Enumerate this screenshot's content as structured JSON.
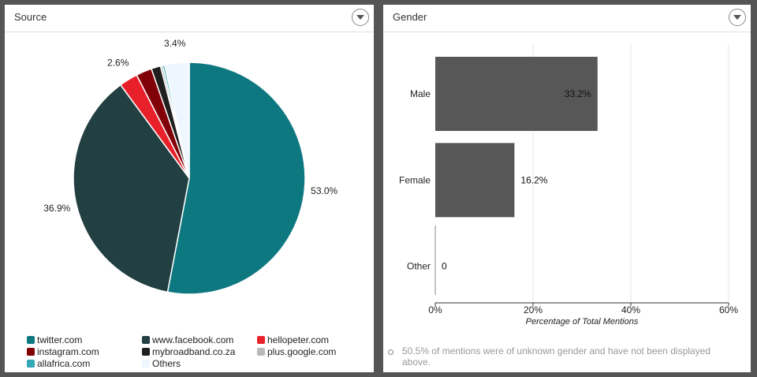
{
  "source_panel": {
    "title": "Source",
    "dropdown_icon": "chevron-down-icon",
    "legend": [
      {
        "label": "twitter.com",
        "color": "#0e7880"
      },
      {
        "label": "www.facebook.com",
        "color": "#223f42"
      },
      {
        "label": "hellopeter.com",
        "color": "#e8202a"
      },
      {
        "label": "instagram.com",
        "color": "#820007"
      },
      {
        "label": "mybroadband.co.za",
        "color": "#1f1f1f"
      },
      {
        "label": "plus.google.com",
        "color": "#b9b9b9"
      },
      {
        "label": "allafrica.com",
        "color": "#35a7b5"
      },
      {
        "label": "Others",
        "color": "#eef6ff"
      }
    ]
  },
  "gender_panel": {
    "title": "Gender",
    "dropdown_icon": "chevron-down-icon",
    "note": "50.5% of mentions were of unknown gender and have not been displayed above."
  },
  "chart_data": [
    {
      "type": "pie",
      "title": "Source",
      "slices": [
        {
          "label": "twitter.com",
          "value": 53.0,
          "display": "53.0%",
          "color": "#0e7880"
        },
        {
          "label": "www.facebook.com",
          "value": 36.9,
          "display": "36.9%",
          "color": "#223f42"
        },
        {
          "label": "hellopeter.com",
          "value": 2.6,
          "display": "2.6%",
          "color": "#e8202a"
        },
        {
          "label": "instagram.com",
          "value": 2.2,
          "display": "",
          "color": "#820007"
        },
        {
          "label": "mybroadband.co.za",
          "value": 1.3,
          "display": "",
          "color": "#1f1f1f"
        },
        {
          "label": "plus.google.com",
          "value": 0.3,
          "display": "",
          "color": "#b9b9b9"
        },
        {
          "label": "allafrica.com",
          "value": 0.3,
          "display": "",
          "color": "#35a7b5"
        },
        {
          "label": "Others",
          "value": 3.4,
          "display": "3.4%",
          "color": "#eef6ff"
        }
      ]
    },
    {
      "type": "bar",
      "orientation": "horizontal",
      "title": "Gender",
      "categories": [
        "Male",
        "Female",
        "Other"
      ],
      "values": [
        33.2,
        16.2,
        0
      ],
      "value_labels": [
        "33.2%",
        "16.2%",
        "0"
      ],
      "xlabel": "Percentage of Total Mentions",
      "xlim": [
        0,
        60
      ],
      "xticks": [
        0,
        20,
        40,
        60
      ],
      "xtick_labels": [
        "0%",
        "20%",
        "40%",
        "60%"
      ],
      "bar_color": "#575757",
      "grid": true
    }
  ]
}
